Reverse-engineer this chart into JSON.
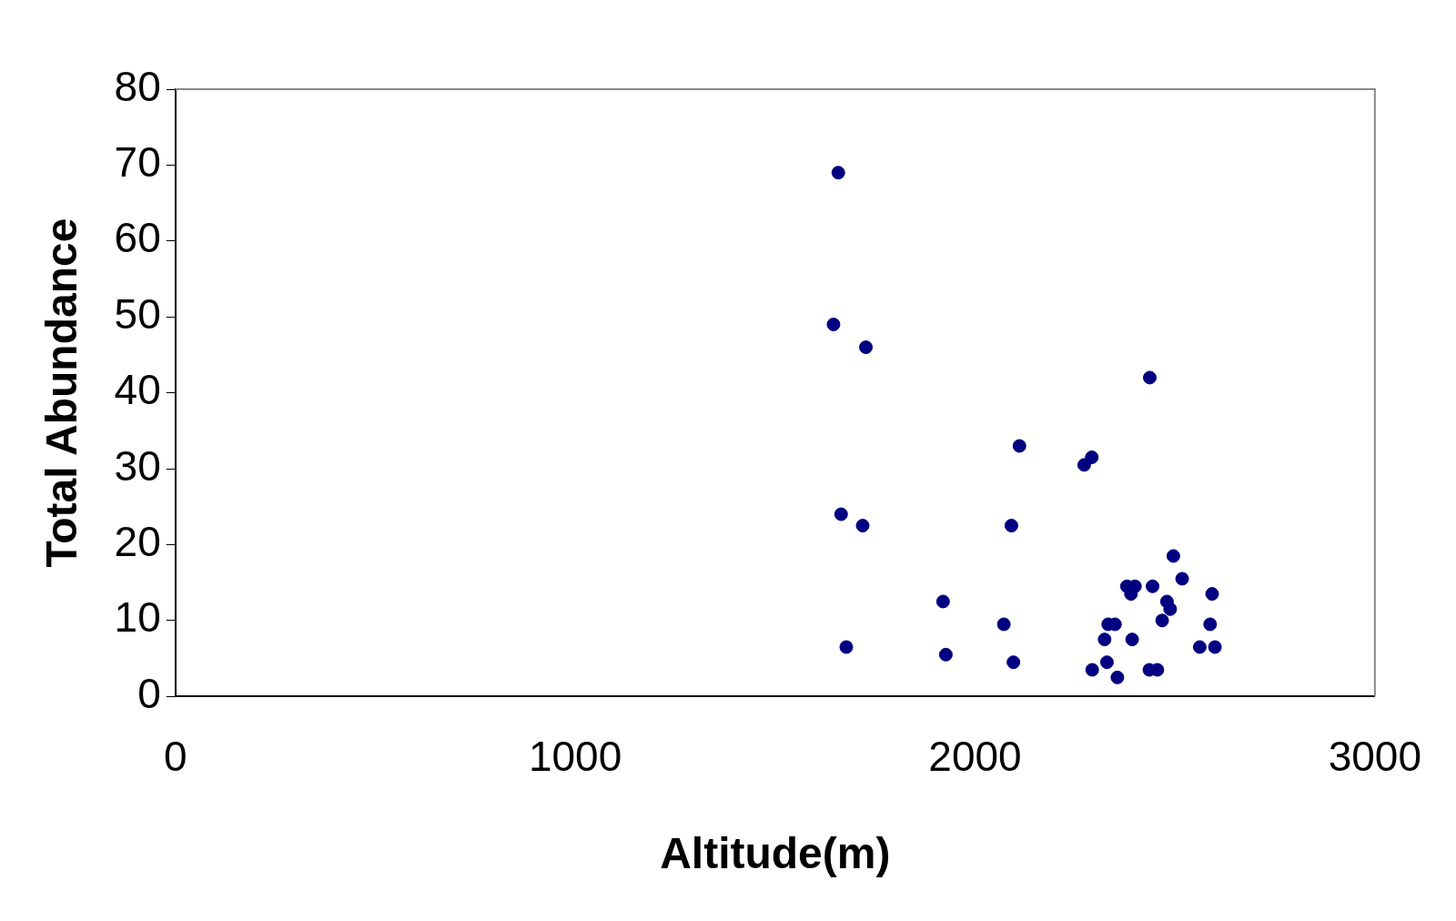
{
  "chart_data": {
    "type": "scatter",
    "xlabel": "Altitude(m)",
    "ylabel": "Total Abundance",
    "x": [
      1658,
      1646,
      1727,
      2437,
      2111,
      2292,
      2273,
      1665,
      1719,
      2091,
      1920,
      2072,
      1678,
      1927,
      2096,
      2496,
      2518,
      2380,
      2400,
      2390,
      2444,
      2593,
      2480,
      2488,
      2468,
      2333,
      2350,
      2588,
      2324,
      2393,
      2562,
      2600,
      2330,
      2293,
      2436,
      2456,
      2356
    ],
    "values": [
      69,
      49,
      46,
      42,
      33,
      31.5,
      30.5,
      24,
      22.5,
      22.5,
      12.5,
      9.5,
      6.5,
      5.5,
      4.5,
      18.5,
      15.5,
      14.5,
      14.5,
      13.5,
      14.5,
      13.5,
      12.5,
      11.5,
      10,
      9.5,
      9.5,
      9.5,
      7.5,
      7.5,
      6.5,
      6.5,
      4.5,
      3.5,
      3.5,
      3.5,
      2.5
    ],
    "color": "#000080",
    "marker": "circle",
    "grid": false,
    "legend": false,
    "xlim": [
      0,
      3000
    ],
    "xticks": [
      0,
      1000,
      2000,
      3000
    ],
    "ylim": [
      0,
      80
    ],
    "yticks": [
      0,
      10,
      20,
      30,
      40,
      50,
      60,
      70,
      80
    ]
  }
}
